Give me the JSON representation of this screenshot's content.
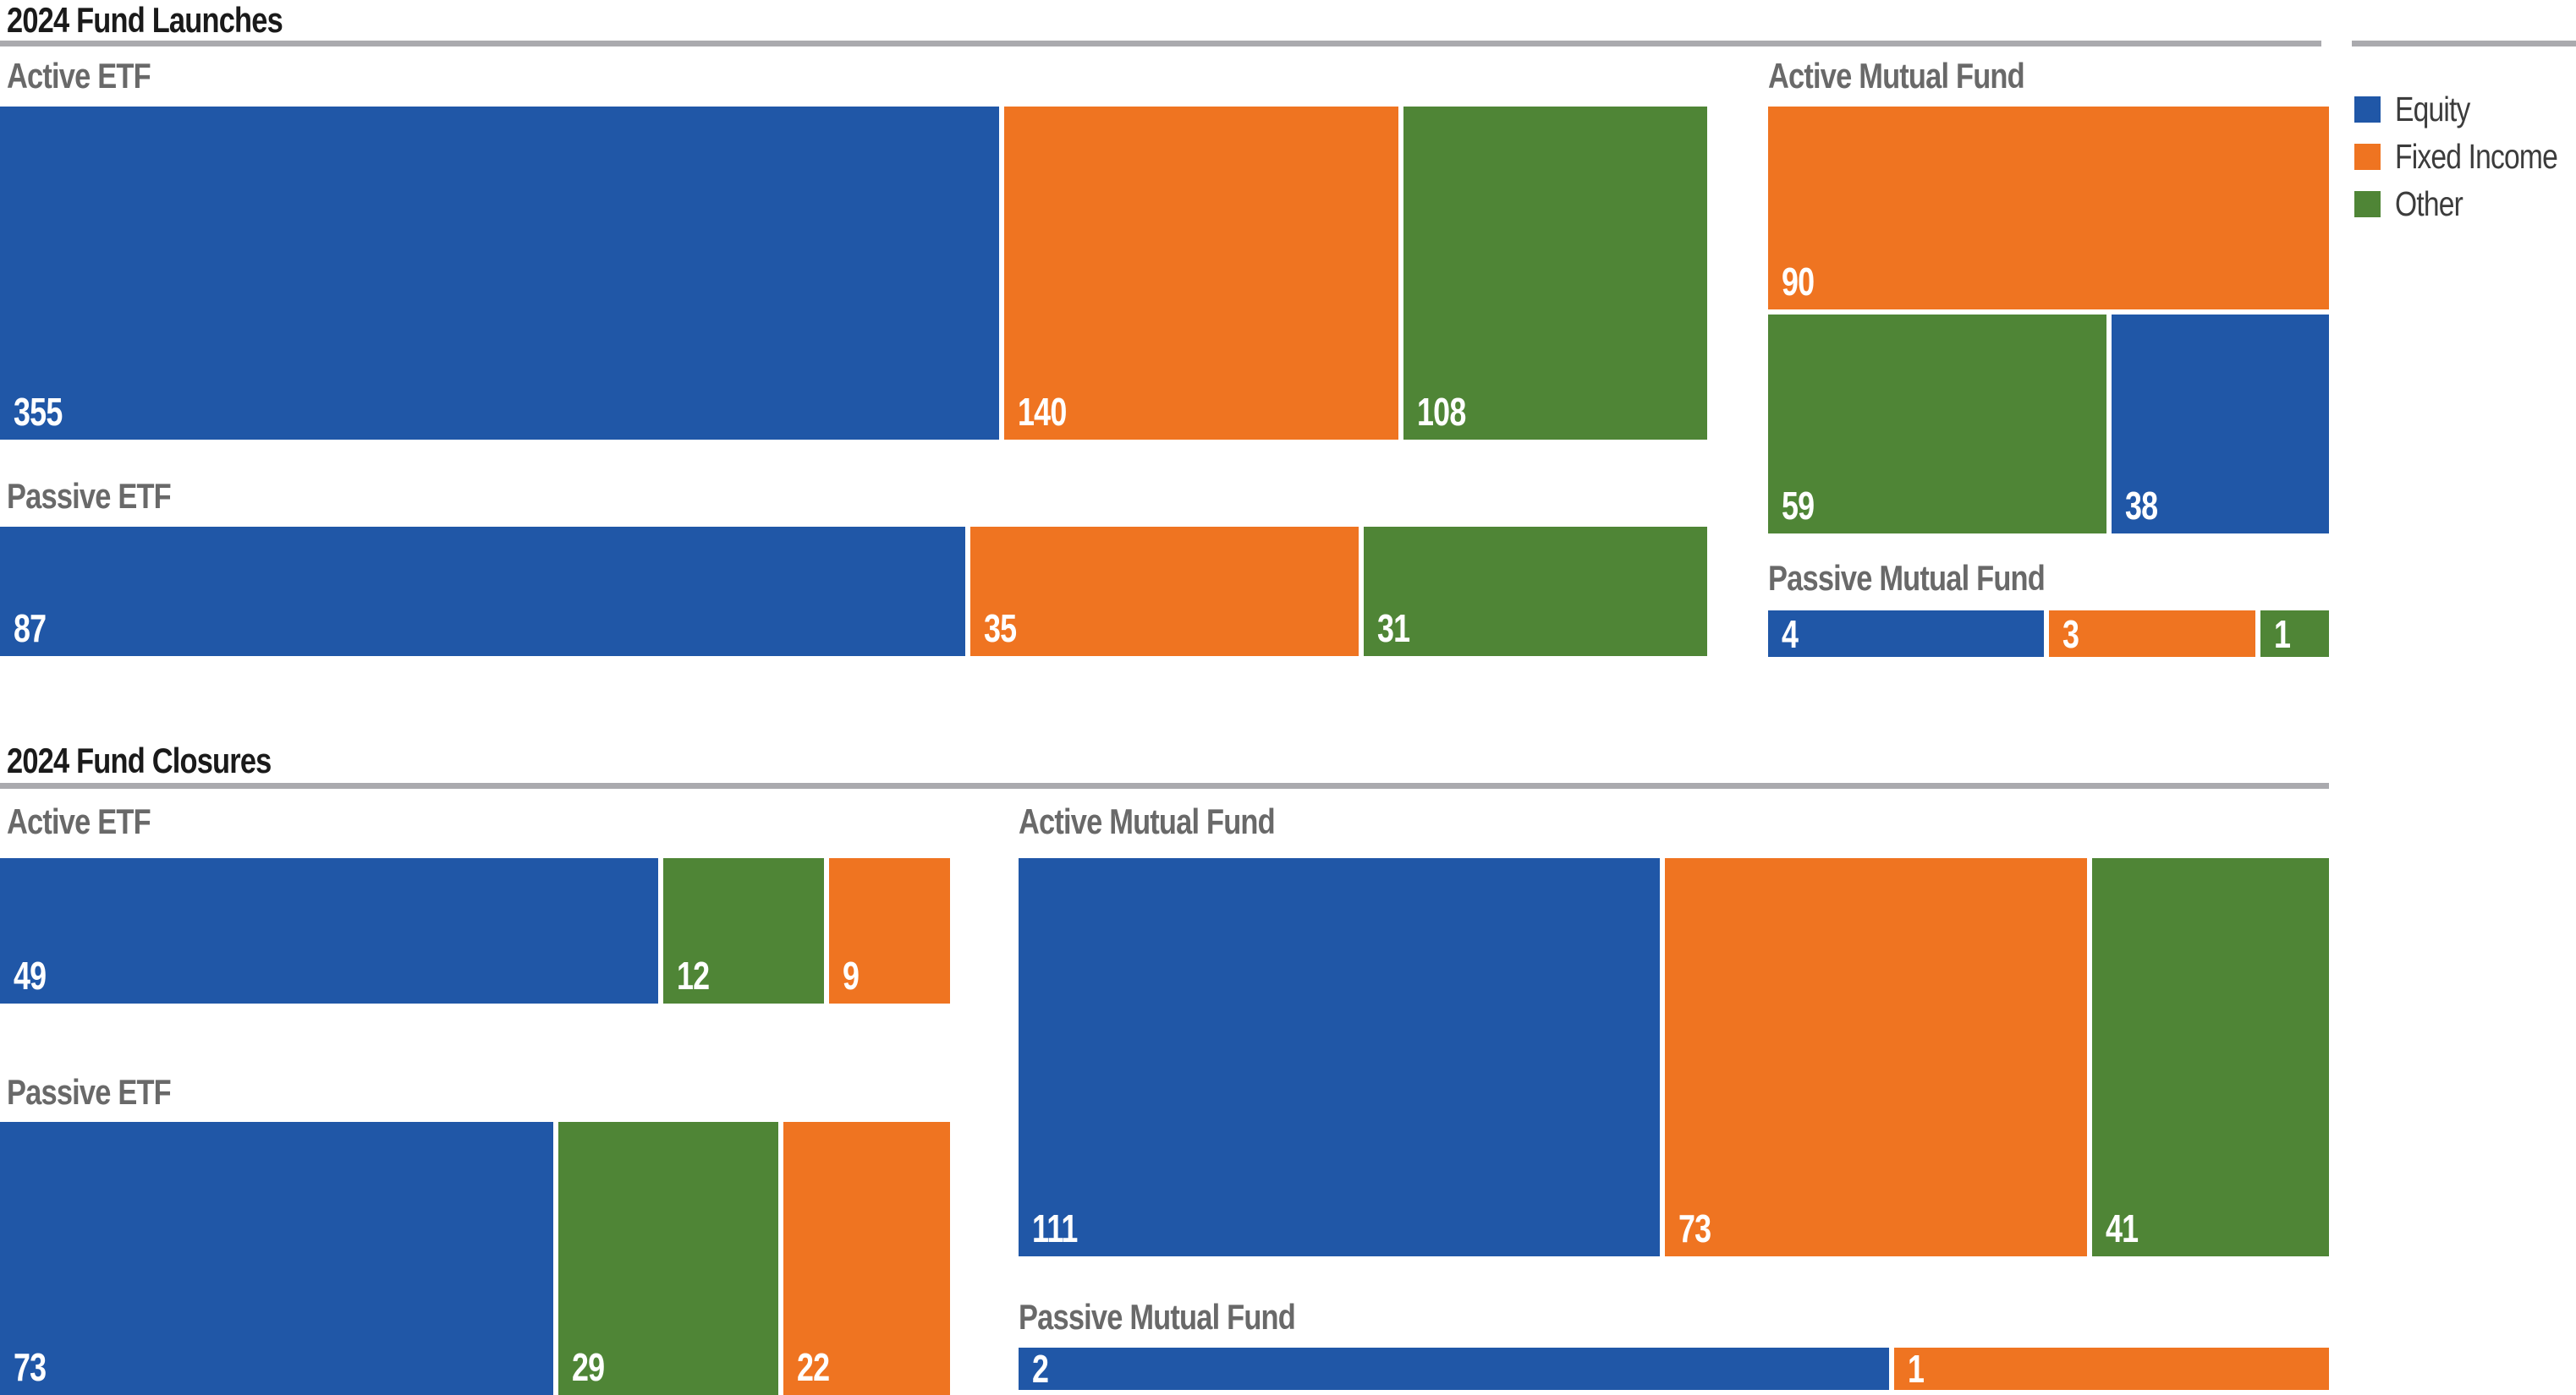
{
  "page": {
    "background": "#ffffff"
  },
  "chart_data": {
    "type": "bar",
    "subtype": "proportional-segmented-bars-with-treemap",
    "grid": false,
    "legend_position": "top-right",
    "legend": [
      {
        "label": "Equity",
        "color": "#2057A7"
      },
      {
        "label": "Fixed Income",
        "color": "#EF7421"
      },
      {
        "label": "Other",
        "color": "#4F8536"
      }
    ],
    "sections": [
      {
        "title": "2024 Fund Launches",
        "panels": [
          {
            "title": "Active ETF",
            "layout": "row",
            "segments": [
              {
                "category": "Equity",
                "value": 355
              },
              {
                "category": "Fixed Income",
                "value": 140
              },
              {
                "category": "Other",
                "value": 108
              }
            ]
          },
          {
            "title": "Passive ETF",
            "layout": "row",
            "segments": [
              {
                "category": "Equity",
                "value": 87
              },
              {
                "category": "Fixed Income",
                "value": 35
              },
              {
                "category": "Other",
                "value": 31
              }
            ]
          },
          {
            "title": "Active Mutual Fund",
            "layout": "treemap",
            "segments": [
              {
                "category": "Fixed Income",
                "value": 90
              },
              {
                "category": "Other",
                "value": 59
              },
              {
                "category": "Equity",
                "value": 38
              }
            ]
          },
          {
            "title": "Passive Mutual Fund",
            "layout": "row",
            "segments": [
              {
                "category": "Equity",
                "value": 4
              },
              {
                "category": "Fixed Income",
                "value": 3
              },
              {
                "category": "Other",
                "value": 1
              }
            ]
          }
        ]
      },
      {
        "title": "2024 Fund Closures",
        "panels": [
          {
            "title": "Active ETF",
            "layout": "row",
            "segments": [
              {
                "category": "Equity",
                "value": 49
              },
              {
                "category": "Other",
                "value": 12
              },
              {
                "category": "Fixed Income",
                "value": 9
              }
            ]
          },
          {
            "title": "Passive ETF",
            "layout": "row",
            "segments": [
              {
                "category": "Equity",
                "value": 73
              },
              {
                "category": "Other",
                "value": 29
              },
              {
                "category": "Fixed Income",
                "value": 22
              }
            ]
          },
          {
            "title": "Active Mutual Fund",
            "layout": "row",
            "segments": [
              {
                "category": "Equity",
                "value": 111
              },
              {
                "category": "Fixed Income",
                "value": 73
              },
              {
                "category": "Other",
                "value": 41
              }
            ]
          },
          {
            "title": "Passive Mutual Fund",
            "layout": "row",
            "segments": [
              {
                "category": "Equity",
                "value": 2
              },
              {
                "category": "Fixed Income",
                "value": 1
              }
            ]
          }
        ]
      }
    ]
  },
  "styles": {
    "rule_color": "#AAAAAE",
    "section_title_color": "#1A1A1A",
    "panel_title_color": "#696969",
    "bar_label_color": "#FFFFFF"
  }
}
